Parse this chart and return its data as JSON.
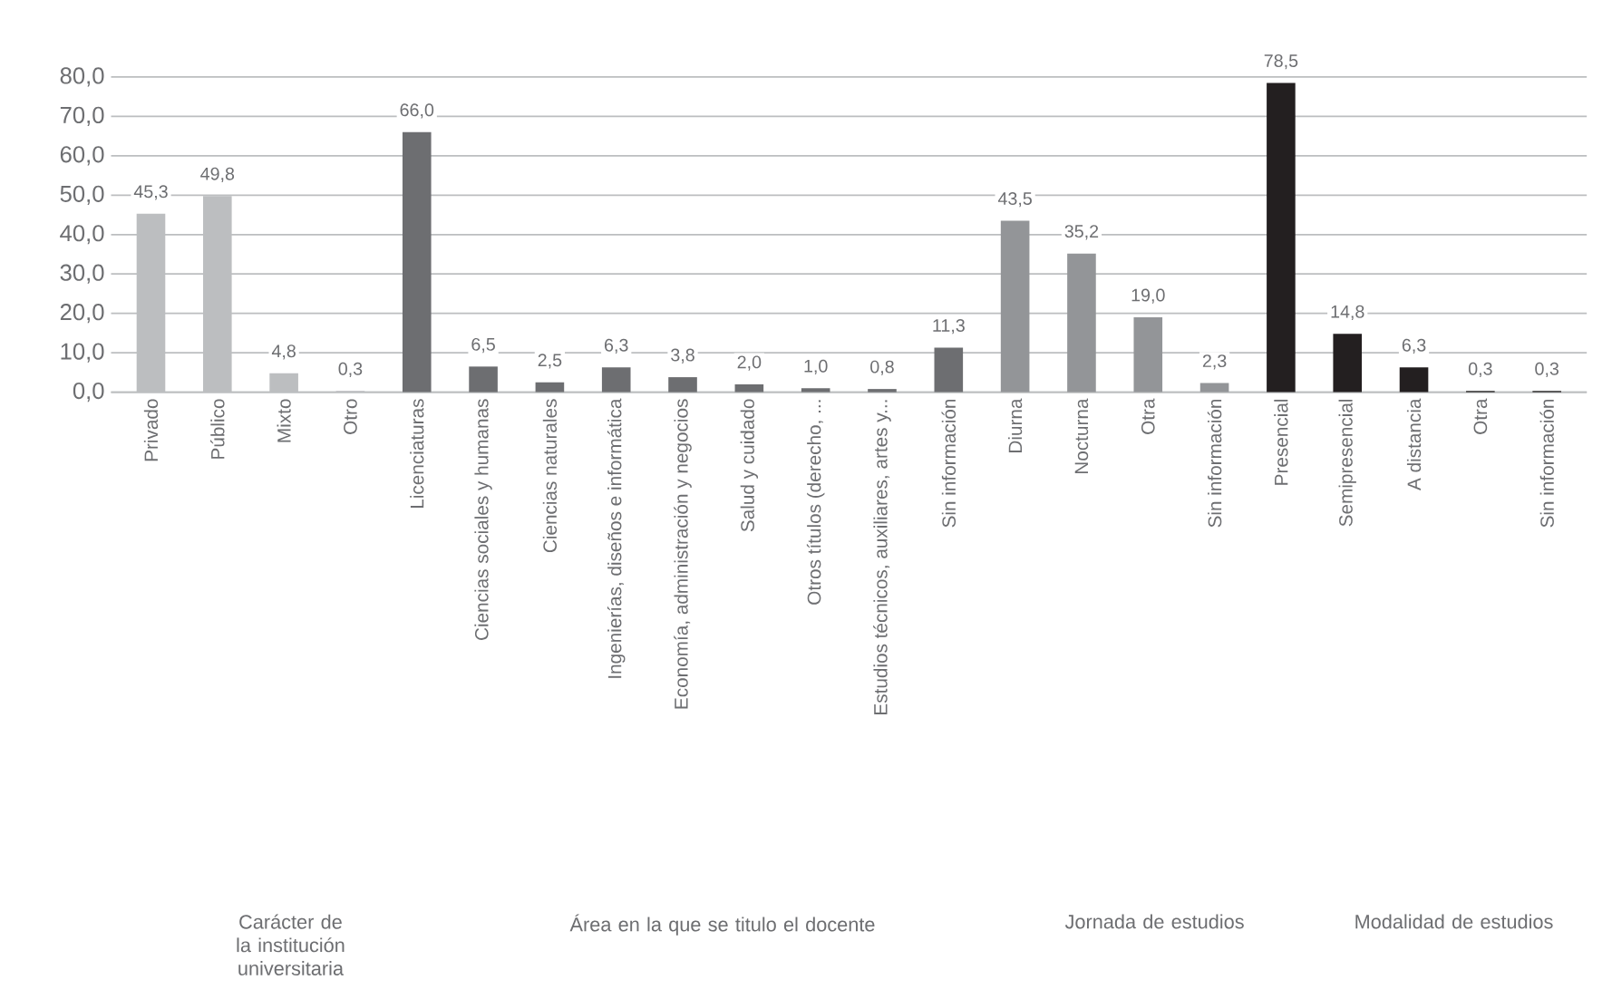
{
  "chart_data": {
    "type": "bar",
    "categories": [
      "Privado",
      "Público",
      "Mixto",
      "Otro",
      "Licenciaturas",
      "Ciencias sociales y humanas",
      "Ciencias naturales",
      "Ingenierías, diseños e informática",
      "Economía, administración y negocios",
      "Salud y cuidado",
      "Otros títulos (derecho, ...",
      "Estudios técnicos, auxiliares, artes y...",
      "Sin información",
      "Diurna",
      "Nocturna",
      "Otra",
      "Sin información",
      "Presencial",
      "Semipresencial",
      "A distancia",
      "Otra",
      "Sin información"
    ],
    "values": [
      45.3,
      49.8,
      4.8,
      0.3,
      66.0,
      6.5,
      2.5,
      6.3,
      3.8,
      2.0,
      1.0,
      0.8,
      11.3,
      43.5,
      35.2,
      19.0,
      2.3,
      78.5,
      14.8,
      6.3,
      0.3,
      0.3
    ],
    "value_labels": [
      "45,3",
      "49,8",
      "4,8",
      "0,3",
      "66,0",
      "6,5",
      "2,5",
      "6,3",
      "3,8",
      "2,0",
      "1,0",
      "0,8",
      "11,3",
      "43,5",
      "35,2",
      "19,0",
      "2,3",
      "78,5",
      "14,8",
      "6,3",
      "0,3",
      "0,3"
    ],
    "colors": [
      "#bcbec0",
      "#bcbec0",
      "#bcbec0",
      "#bcbec0",
      "#6d6e71",
      "#6d6e71",
      "#6d6e71",
      "#6d6e71",
      "#6d6e71",
      "#6d6e71",
      "#6d6e71",
      "#6d6e71",
      "#6d6e71",
      "#939598",
      "#939598",
      "#939598",
      "#939598",
      "#231f20",
      "#231f20",
      "#231f20",
      "#231f20",
      "#231f20"
    ],
    "ylim": [
      0,
      80
    ],
    "yticks": [
      {
        "value": 0,
        "label": "0,0"
      },
      {
        "value": 10,
        "label": "10,0"
      },
      {
        "value": 20,
        "label": "20,0"
      },
      {
        "value": 30,
        "label": "30,0"
      },
      {
        "value": 40,
        "label": "40,0"
      },
      {
        "value": 50,
        "label": "50,0"
      },
      {
        "value": 60,
        "label": "60,0"
      },
      {
        "value": 70,
        "label": "70,0"
      },
      {
        "value": 80,
        "label": "80,0"
      }
    ],
    "grid": "y",
    "annotations": [
      "Carácter de la institución universitaria",
      "Área en la que se titulo el docente",
      "Jornada de estudios",
      "Modalidad de estudios"
    ]
  }
}
